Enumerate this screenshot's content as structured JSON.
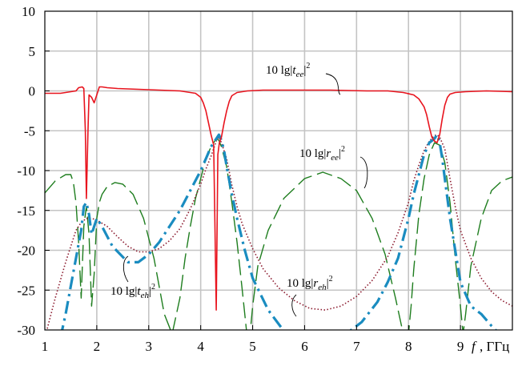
{
  "chart_data": {
    "type": "line",
    "xlabel_var": "f",
    "xlabel_unit": ", ГГц",
    "xlim": [
      1,
      10
    ],
    "ylim": [
      -30,
      10
    ],
    "x_ticks": [
      1,
      2,
      3,
      4,
      5,
      6,
      7,
      8,
      9
    ],
    "y_ticks": [
      10,
      5,
      0,
      -5,
      -10,
      -15,
      -20,
      -25,
      -30
    ],
    "grid": true,
    "colors": {
      "tee": "#e8141e",
      "ree": "#1e7d1e",
      "teh": "#1a8cc0",
      "reh": "#8b1a2e",
      "grid": "#c4c4c4"
    },
    "series": [
      {
        "key": "tee",
        "style": "solid",
        "label": {
          "pre": "10 lg",
          "sym": "t",
          "sub": "ee",
          "sup": "2"
        },
        "x": [
          1.0,
          1.3,
          1.6,
          1.65,
          1.72,
          1.75,
          1.78,
          1.8,
          1.83,
          1.85,
          1.9,
          1.95,
          2.0,
          2.05,
          2.1,
          2.2,
          2.4,
          2.8,
          3.2,
          3.6,
          3.9,
          4.0,
          4.05,
          4.1,
          4.15,
          4.2,
          4.25,
          4.3,
          4.33,
          4.36,
          4.4,
          4.45,
          4.5,
          4.55,
          4.6,
          4.7,
          4.9,
          5.2,
          5.8,
          6.5,
          7.2,
          7.6,
          7.9,
          8.1,
          8.2,
          8.3,
          8.35,
          8.4,
          8.45,
          8.5,
          8.55,
          8.6,
          8.65,
          8.7,
          8.75,
          8.8,
          8.9,
          9.1,
          9.5,
          10.0
        ],
        "y": [
          -0.3,
          -0.3,
          0.0,
          0.4,
          0.5,
          0.3,
          -5,
          -13.5,
          -5,
          -0.5,
          -0.8,
          -1.5,
          -0.5,
          0.5,
          0.5,
          0.4,
          0.3,
          0.2,
          0.1,
          0.0,
          -0.3,
          -0.8,
          -1.5,
          -2.5,
          -4,
          -5.5,
          -6.8,
          -27.5,
          -8,
          -6.5,
          -5.8,
          -4,
          -2.5,
          -1.3,
          -0.6,
          -0.2,
          0.0,
          0.1,
          0.1,
          0.1,
          0.0,
          0.0,
          -0.2,
          -0.5,
          -1,
          -2,
          -3,
          -4.5,
          -5.8,
          -6.3,
          -6.5,
          -5.5,
          -3.5,
          -1.8,
          -0.8,
          -0.4,
          -0.2,
          -0.1,
          0.0,
          -0.1
        ]
      },
      {
        "key": "ree",
        "style": "longdash",
        "label": {
          "pre": "10 lg",
          "sym": "r",
          "sub": "ee",
          "sup": "2"
        },
        "x": [
          1.0,
          1.2,
          1.4,
          1.5,
          1.55,
          1.6,
          1.65,
          1.7,
          1.75,
          1.8,
          1.85,
          1.9,
          1.95,
          2.0,
          2.05,
          2.1,
          2.2,
          2.35,
          2.5,
          2.7,
          2.9,
          3.1,
          3.3,
          3.45,
          3.6,
          3.7,
          3.8,
          3.9,
          4.0,
          4.1,
          4.2,
          4.3,
          4.35,
          4.4,
          4.5,
          4.6,
          4.7,
          4.8,
          4.88,
          4.95,
          5.0,
          5.1,
          5.3,
          5.6,
          6.0,
          6.35,
          6.7,
          7.0,
          7.3,
          7.55,
          7.75,
          7.9,
          8.0,
          8.05,
          8.1,
          8.2,
          8.3,
          8.4,
          8.5,
          8.6,
          8.7,
          8.8,
          8.9,
          9.0,
          9.05,
          9.1,
          9.2,
          9.4,
          9.6,
          9.8,
          10.0
        ],
        "y": [
          -12.8,
          -11.3,
          -10.5,
          -10.5,
          -11.5,
          -14,
          -19,
          -26,
          -17,
          -14.5,
          -18,
          -27,
          -23,
          -16,
          -14,
          -13,
          -12,
          -11.5,
          -11.7,
          -13,
          -16,
          -21,
          -28,
          -30.5,
          -26,
          -21,
          -17,
          -13.5,
          -11,
          -8.5,
          -7,
          -6,
          -6.2,
          -7,
          -9.5,
          -14,
          -19,
          -25,
          -30,
          -30.5,
          -27,
          -22,
          -17.5,
          -13.5,
          -11,
          -10.2,
          -11,
          -12.5,
          -16,
          -20.5,
          -26,
          -30.5,
          -30.5,
          -27,
          -22.5,
          -15.5,
          -11,
          -8,
          -6.5,
          -6.8,
          -9,
          -14,
          -21,
          -27,
          -30.5,
          -28,
          -22,
          -16,
          -12.5,
          -11.3,
          -10.8
        ]
      },
      {
        "key": "teh",
        "style": "dashdot",
        "label": {
          "pre": "10 lg",
          "sym": "t",
          "sub": "eh",
          "sup": "2"
        },
        "x": [
          1.3,
          1.4,
          1.5,
          1.6,
          1.7,
          1.75,
          1.8,
          1.85,
          1.9,
          1.95,
          2.0,
          2.1,
          2.3,
          2.6,
          2.8,
          3.0,
          3.2,
          3.4,
          3.6,
          3.8,
          4.0,
          4.1,
          4.2,
          4.3,
          4.35,
          4.4,
          4.45,
          4.5,
          4.6,
          4.7,
          4.85,
          5.0,
          5.3,
          5.7,
          6.2,
          6.7,
          7.1,
          7.4,
          7.6,
          7.8,
          8.0,
          8.1,
          8.2,
          8.3,
          8.4,
          8.5,
          8.55,
          8.6,
          8.65,
          8.7,
          8.8,
          8.9,
          9.0,
          9.2,
          9.4,
          9.6,
          9.75
        ],
        "y": [
          -31,
          -28,
          -24.5,
          -21,
          -17.5,
          -14.5,
          -14,
          -15.5,
          -18,
          -17,
          -16,
          -17,
          -19.5,
          -21.5,
          -21.5,
          -20.5,
          -19,
          -17,
          -15,
          -12.5,
          -10,
          -8.5,
          -7,
          -6,
          -5.5,
          -6.2,
          -7.5,
          -9.5,
          -13,
          -16,
          -20,
          -23.5,
          -27.5,
          -31,
          -32,
          -31,
          -29,
          -26.5,
          -24,
          -21,
          -16,
          -13,
          -10.5,
          -8,
          -6.5,
          -6,
          -5.5,
          -6.5,
          -8.5,
          -11,
          -16,
          -20,
          -24,
          -27,
          -28,
          -29.5,
          -30.5
        ]
      },
      {
        "key": "reh",
        "style": "dotted",
        "label": {
          "pre": "10 lg",
          "sym": "r",
          "sub": "eh",
          "sup": "2"
        },
        "x": [
          1.0,
          1.2,
          1.4,
          1.6,
          1.7,
          1.8,
          1.9,
          2.0,
          2.2,
          2.4,
          2.6,
          2.8,
          3.0,
          3.2,
          3.4,
          3.6,
          3.8,
          4.0,
          4.1,
          4.2,
          4.3,
          4.35,
          4.4,
          4.5,
          4.6,
          4.7,
          4.8,
          5.0,
          5.2,
          5.5,
          5.8,
          6.1,
          6.4,
          6.7,
          7.0,
          7.3,
          7.6,
          7.8,
          8.0,
          8.1,
          8.2,
          8.3,
          8.4,
          8.5,
          8.55,
          8.6,
          8.7,
          8.8,
          8.9,
          9.0,
          9.2,
          9.4,
          9.6,
          9.8,
          10.0
        ],
        "y": [
          -31,
          -26,
          -21.5,
          -17.5,
          -16.5,
          -16,
          -16,
          -16.2,
          -17,
          -18.3,
          -19.5,
          -20.2,
          -20.2,
          -19.8,
          -18.8,
          -17.3,
          -14.8,
          -11.7,
          -9.8,
          -8.2,
          -6.3,
          -5.8,
          -6.5,
          -8.5,
          -11.8,
          -14.5,
          -16.7,
          -19.8,
          -22.3,
          -24.7,
          -26.3,
          -27.3,
          -27.5,
          -27,
          -25.8,
          -23.8,
          -20.8,
          -17.8,
          -14,
          -11.3,
          -9.3,
          -7.5,
          -6.3,
          -5.6,
          -5.5,
          -5.8,
          -7.3,
          -11,
          -14.5,
          -17.5,
          -21,
          -23.5,
          -25.2,
          -26.3,
          -27
        ]
      }
    ]
  }
}
